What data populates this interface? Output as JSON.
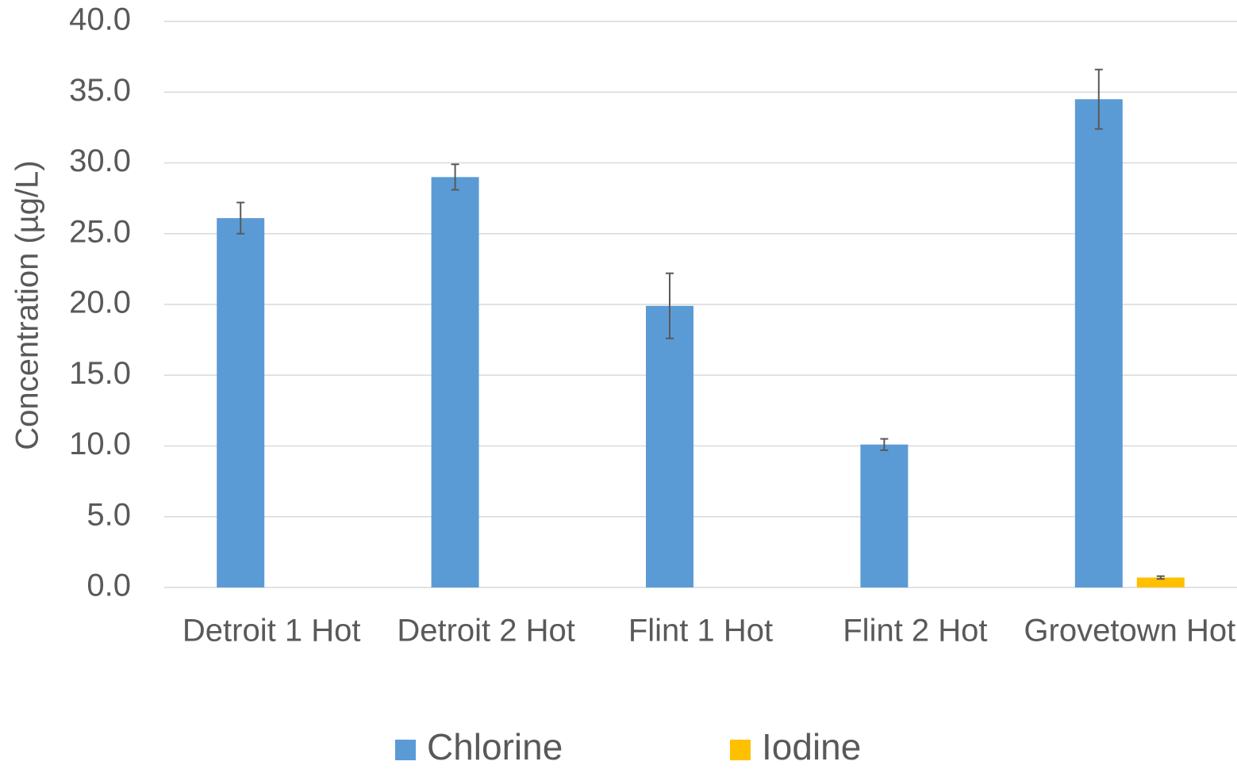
{
  "chart_data": {
    "type": "bar",
    "y_label": "Concentration (µg/L)",
    "categories": [
      "Detroit 1 Hot",
      "Detroit 2 Hot",
      "Flint 1 Hot",
      "Flint 2 Hot",
      "Grovetown Hot"
    ],
    "series": [
      {
        "name": "Chlorine",
        "color": "#5b9bd5",
        "values": [
          26.1,
          29.0,
          19.9,
          10.1,
          34.5
        ],
        "errors": [
          1.1,
          0.9,
          2.3,
          0.4,
          2.1
        ]
      },
      {
        "name": "Iodine",
        "color": "#ffc000",
        "values": [
          null,
          null,
          null,
          null,
          0.7
        ],
        "errors": [
          null,
          null,
          null,
          null,
          0.1
        ]
      }
    ],
    "ylim": [
      0,
      40
    ],
    "yticks": [
      {
        "value": 0,
        "label": "0.0"
      },
      {
        "value": 5,
        "label": "5.0"
      },
      {
        "value": 10,
        "label": "10.0"
      },
      {
        "value": 15,
        "label": "15.0"
      },
      {
        "value": 20,
        "label": "20.0"
      },
      {
        "value": 25,
        "label": "25.0"
      },
      {
        "value": 30,
        "label": "30.0"
      },
      {
        "value": 35,
        "label": "35.0"
      },
      {
        "value": 40,
        "label": "40.0"
      }
    ],
    "grid": true,
    "legend": "bottom"
  }
}
